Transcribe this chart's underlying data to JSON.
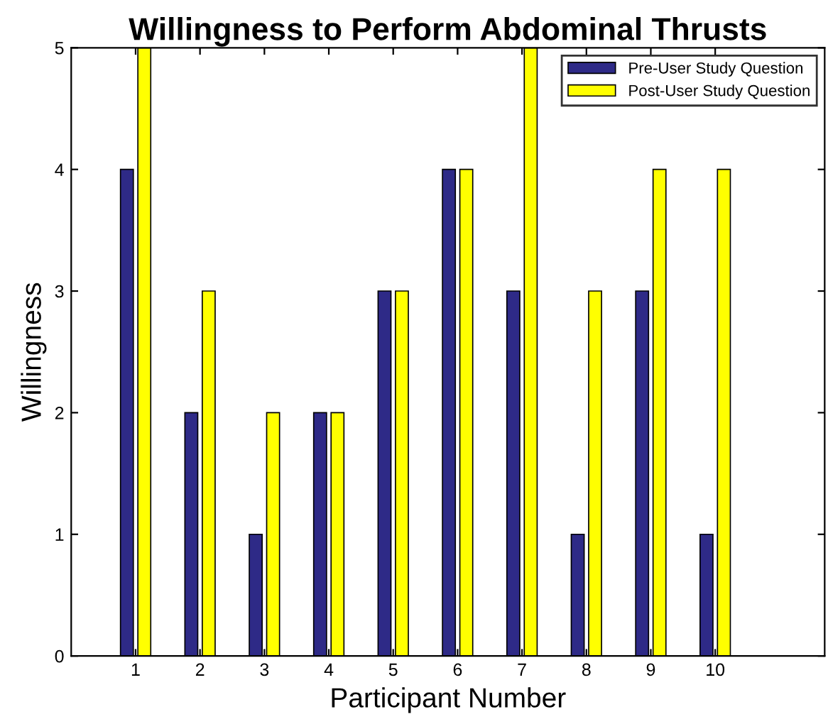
{
  "chart_data": {
    "type": "bar",
    "title": "Willingness to Perform Abdominal Thrusts",
    "xlabel": "Participant Number",
    "ylabel": "Willingness",
    "x": [
      1,
      2,
      3,
      4,
      5,
      6,
      7,
      8,
      9,
      10
    ],
    "series": [
      {
        "name": "Pre-User Study Question",
        "color": "#2e2a87",
        "values": [
          4,
          2,
          1,
          2,
          3,
          4,
          3,
          1,
          3,
          1
        ]
      },
      {
        "name": "Post-User Study Question",
        "color": "#ffff00",
        "values": [
          5,
          3,
          2,
          2,
          3,
          4,
          5,
          3,
          4,
          4
        ]
      }
    ],
    "xlim": [
      0,
      11.7
    ],
    "xticks": [
      1,
      2,
      3,
      4,
      5,
      6,
      7,
      8,
      9,
      10
    ],
    "ylim": [
      0,
      5
    ],
    "yticks": [
      0,
      1,
      2,
      3,
      4,
      5
    ],
    "grid": false,
    "legend": "top right"
  }
}
